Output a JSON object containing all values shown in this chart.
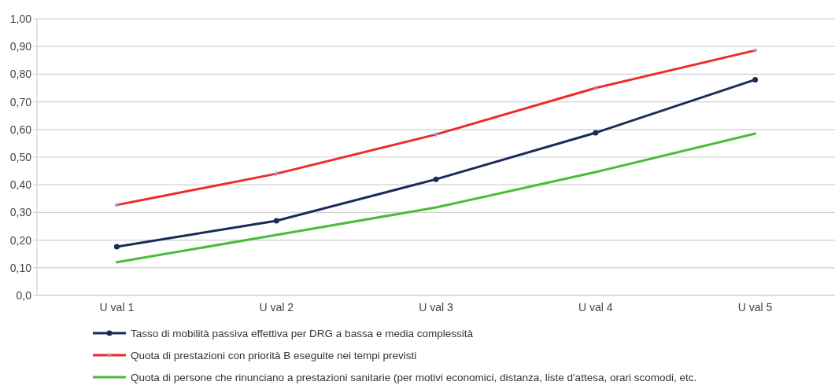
{
  "chart_data": {
    "type": "line",
    "categories": [
      "U val 1",
      "U val 2",
      "U val 3",
      "U val 4",
      "U val 5"
    ],
    "series": [
      {
        "name": "Tasso di mobilità passiva effettiva per DRG a bassa e media complessità",
        "color": "#1b2a5a",
        "marker": "circle",
        "values": [
          0.176,
          0.27,
          0.42,
          0.588,
          0.78
        ]
      },
      {
        "name": "Quota di prestazioni con priorità B eseguite nei tempi previsti",
        "color": "#ee2a2a",
        "marker": "cross",
        "values": [
          0.327,
          0.44,
          0.582,
          0.75,
          0.886
        ]
      },
      {
        "name": "Quota di persone che rinunciano a prestazioni sanitarie (per motivi economici, distanza, liste d'attesa, orari scomodi, etc.",
        "color": "#4cbb3a",
        "marker": "none",
        "values": [
          0.12,
          0.219,
          0.318,
          0.446,
          0.585
        ]
      }
    ],
    "ylim": [
      0,
      1
    ],
    "yticks": [
      {
        "value": 0,
        "label": "0,0"
      },
      {
        "value": 0.1,
        "label": "0,10"
      },
      {
        "value": 0.2,
        "label": "0,20"
      },
      {
        "value": 0.3,
        "label": "0,30"
      },
      {
        "value": 0.4,
        "label": "0,40"
      },
      {
        "value": 0.5,
        "label": "0,50"
      },
      {
        "value": 0.6,
        "label": "0,60"
      },
      {
        "value": 0.7,
        "label": "0,70"
      },
      {
        "value": 0.8,
        "label": "0,80"
      },
      {
        "value": 0.9,
        "label": "0,90"
      },
      {
        "value": 1,
        "label": "1,00"
      }
    ],
    "grid": "y",
    "legend": "bottom",
    "line_style": "solid"
  }
}
